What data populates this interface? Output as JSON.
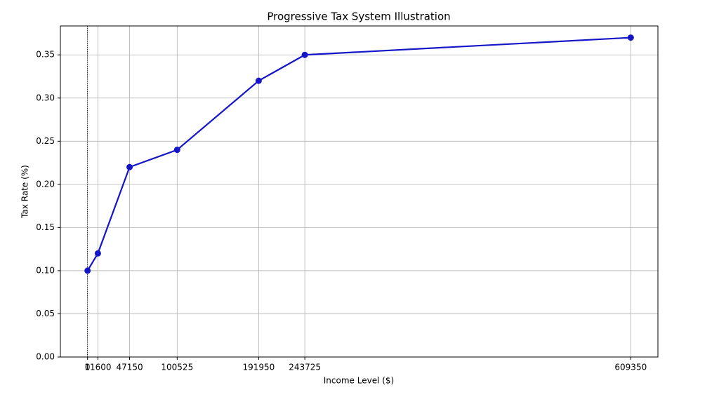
{
  "chart_data": {
    "type": "line",
    "title": "Progressive Tax System Illustration",
    "xlabel": "Income Level ($)",
    "ylabel": "Tax Rate (%)",
    "x": [
      0,
      11600,
      47150,
      100525,
      191950,
      243725,
      609350
    ],
    "series": [
      {
        "color": "#1515c8",
        "values": [
          0.1,
          0.12,
          0.22,
          0.24,
          0.32,
          0.35,
          0.37
        ]
      }
    ],
    "xlim": [
      -30467.5,
      639817.5
    ],
    "xticks": [
      0,
      11600,
      47150,
      100525,
      191950,
      243725,
      609350
    ],
    "ylim": [
      0,
      0.3835
    ],
    "yticks": [
      {
        "value": 0,
        "label": "0.00"
      },
      {
        "value": 0.05,
        "label": "0.05"
      },
      {
        "value": 0.1,
        "label": "0.10"
      },
      {
        "value": 0.15,
        "label": "0.15"
      },
      {
        "value": 0.2,
        "label": "0.20"
      },
      {
        "value": 0.25,
        "label": "0.25"
      },
      {
        "value": 0.3,
        "label": "0.30"
      },
      {
        "value": 0.35,
        "label": "0.35"
      }
    ],
    "vlines": [
      0
    ],
    "grid": true
  }
}
